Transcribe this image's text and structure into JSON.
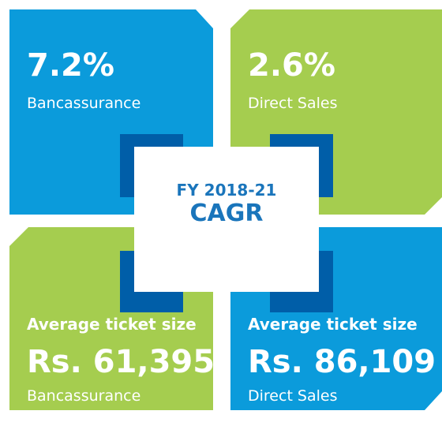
{
  "center": {
    "period": "FY 2018-21",
    "title": "CAGR"
  },
  "tiles": [
    {
      "value": "7.2%",
      "label": "Bancassurance"
    },
    {
      "value": "2.6%",
      "label": "Direct Sales"
    },
    {
      "heading": "Average ticket size",
      "value": "Rs. 61,395",
      "label": "Bancassurance"
    },
    {
      "heading": "Average ticket size",
      "value": "Rs. 86,109",
      "label": "Direct Sales"
    }
  ]
}
